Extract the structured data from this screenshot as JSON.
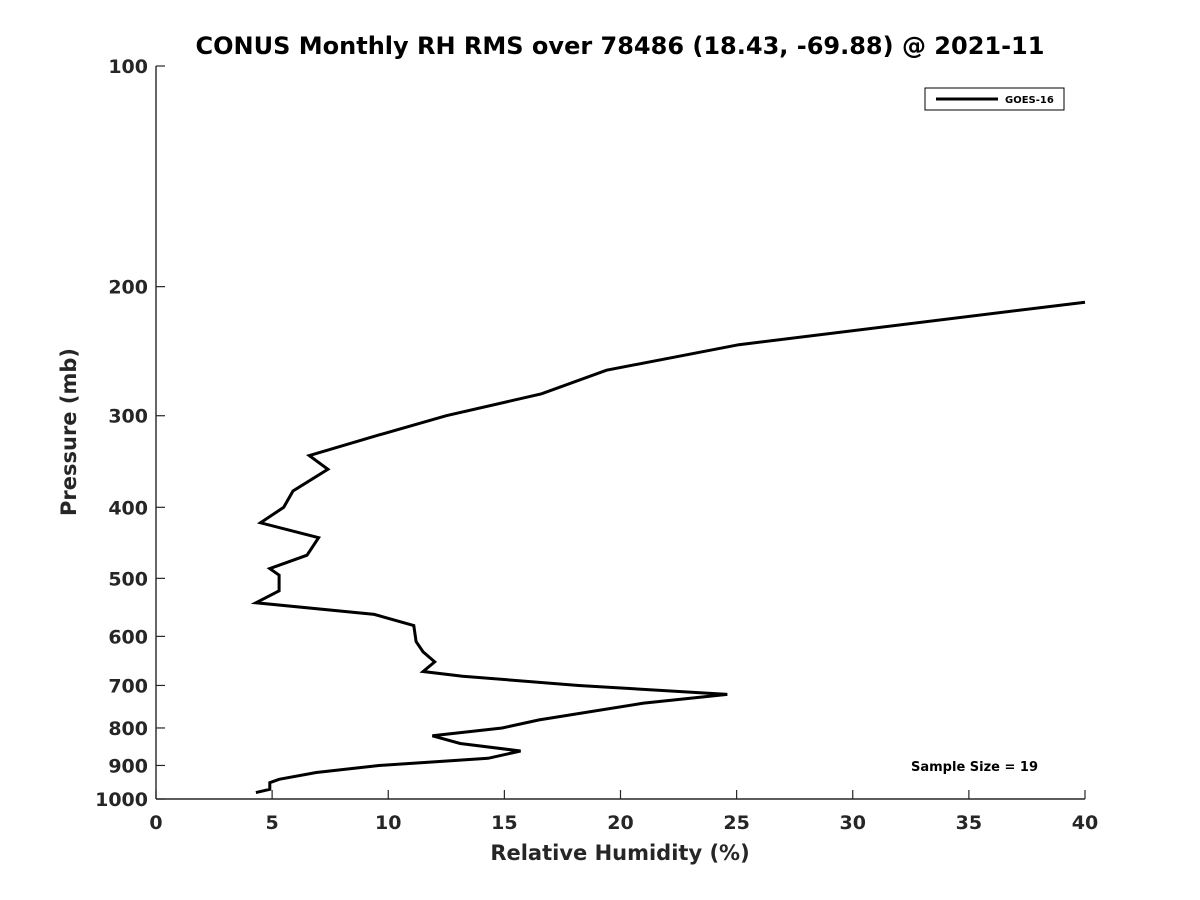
{
  "chart_data": {
    "type": "line",
    "title": "CONUS Monthly RH RMS over 78486 (18.43, -69.88) @ 2021-11",
    "xlabel": "Relative Humidity (%)",
    "ylabel": "Pressure (mb)",
    "xlim": [
      0,
      40
    ],
    "ylim": [
      100,
      1000
    ],
    "yscale": "log",
    "y_direction": "reversed",
    "xticks": [
      0,
      5,
      10,
      15,
      20,
      25,
      30,
      35,
      40
    ],
    "yticks": [
      100,
      200,
      300,
      400,
      500,
      600,
      700,
      800,
      900,
      1000
    ],
    "grid": false,
    "legend_position": "top-right",
    "annotation": "Sample Size = 19",
    "line_color": "#000000",
    "series": [
      {
        "name": "GOES-16",
        "x": [
          40.0,
          25.1,
          19.4,
          16.6,
          12.5,
          9.4,
          6.6,
          7.4,
          5.9,
          5.5,
          4.5,
          7.0,
          6.5,
          4.9,
          5.3,
          5.3,
          4.3,
          9.4,
          11.1,
          11.2,
          11.5,
          12.0,
          11.5,
          13.2,
          18.2,
          24.6,
          21.0,
          16.5,
          14.9,
          11.9,
          13.1,
          15.7,
          14.3,
          9.6,
          6.9,
          5.3,
          4.9,
          4.9,
          4.3
        ],
        "y": [
          210,
          240,
          260,
          280,
          300,
          320,
          340,
          355,
          380,
          400,
          420,
          440,
          465,
          485,
          495,
          520,
          540,
          560,
          580,
          610,
          630,
          650,
          670,
          680,
          700,
          720,
          740,
          780,
          800,
          820,
          840,
          860,
          880,
          900,
          920,
          940,
          950,
          970,
          980
        ]
      }
    ]
  }
}
